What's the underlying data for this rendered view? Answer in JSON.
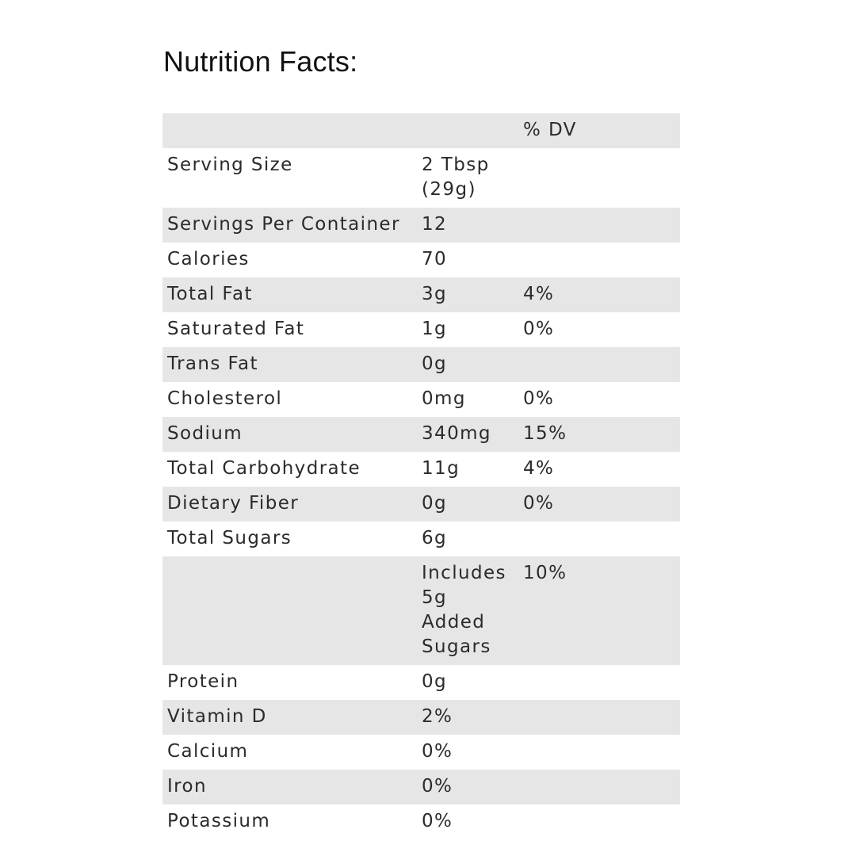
{
  "title": "Nutrition Facts:",
  "table": {
    "header": {
      "col1": "",
      "col2": "",
      "col3": "% DV"
    },
    "rows": [
      {
        "label": "Serving Size",
        "amount": "2 Tbsp (29g)",
        "dv": ""
      },
      {
        "label": "Servings Per Container",
        "amount": "12",
        "dv": ""
      },
      {
        "label": "Calories",
        "amount": "70",
        "dv": ""
      },
      {
        "label": "Total Fat",
        "amount": "3g",
        "dv": "4%"
      },
      {
        "label": "Saturated Fat",
        "amount": "1g",
        "dv": "0%"
      },
      {
        "label": "Trans Fat",
        "amount": "0g",
        "dv": ""
      },
      {
        "label": "Cholesterol",
        "amount": "0mg",
        "dv": "0%"
      },
      {
        "label": "Sodium",
        "amount": "340mg",
        "dv": "15%"
      },
      {
        "label": "Total Carbohydrate",
        "amount": "11g",
        "dv": "4%"
      },
      {
        "label": "Dietary Fiber",
        "amount": "0g",
        "dv": "0%"
      },
      {
        "label": "Total Sugars",
        "amount": "6g",
        "dv": ""
      },
      {
        "label": "",
        "amount": "Includes 5g Added Sugars",
        "dv": "10%"
      },
      {
        "label": "Protein",
        "amount": "0g",
        "dv": ""
      },
      {
        "label": "Vitamin D",
        "amount": "2%",
        "dv": ""
      },
      {
        "label": "Calcium",
        "amount": "0%",
        "dv": ""
      },
      {
        "label": "Iron",
        "amount": "0%",
        "dv": ""
      },
      {
        "label": "Potassium",
        "amount": "0%",
        "dv": ""
      }
    ]
  },
  "colors": {
    "stripe": "#e6e6e6",
    "text": "#2b2b2b",
    "title": "#111111",
    "background": "#ffffff"
  }
}
